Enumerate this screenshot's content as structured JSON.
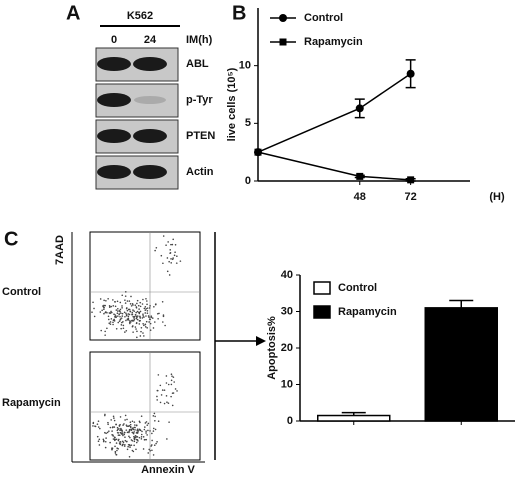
{
  "panel_labels": [
    "A",
    "B",
    "C"
  ],
  "blot": {
    "cell_line": "K562",
    "condition": "IM(h)",
    "timepoints": [
      "0",
      "24"
    ],
    "bands": [
      "ABL",
      "p-Tyr",
      "PTEN",
      "Actin"
    ]
  },
  "flow": {
    "y_axis": "7AAD",
    "x_axis": "Annexin V",
    "rows": [
      "Control",
      "Rapamycin"
    ]
  },
  "chart_data": [
    {
      "type": "line",
      "ylabel": "live cells (10⁵)",
      "xunit": "(H)",
      "x": [
        0,
        48,
        72
      ],
      "xlim": [
        0,
        100
      ],
      "xticks": [
        48,
        72
      ],
      "ylim": [
        0,
        15
      ],
      "yticks": [
        0,
        5,
        10
      ],
      "legend": "top-left",
      "series": [
        {
          "name": "Control",
          "color": "#000000",
          "marker": "circle",
          "values": [
            2.5,
            6.3,
            9.3
          ],
          "errors": [
            0,
            0.8,
            1.2
          ]
        },
        {
          "name": "Rapamycin",
          "color": "#000000",
          "marker": "square",
          "values": [
            2.5,
            0.4,
            0.1
          ],
          "errors": [
            0,
            0.1,
            0.1
          ]
        }
      ]
    },
    {
      "type": "bar",
      "ylabel": "Apoptosis%",
      "ylim": [
        0,
        40
      ],
      "yticks": [
        0,
        10,
        20,
        30,
        40
      ],
      "legend": "top-left",
      "series": [
        {
          "name": "Control",
          "color": "#ffffff",
          "values": [
            1.5
          ],
          "errors": [
            0.8
          ]
        },
        {
          "name": "Rapamycin",
          "color": "#000000",
          "values": [
            31
          ],
          "errors": [
            2
          ]
        }
      ]
    }
  ]
}
